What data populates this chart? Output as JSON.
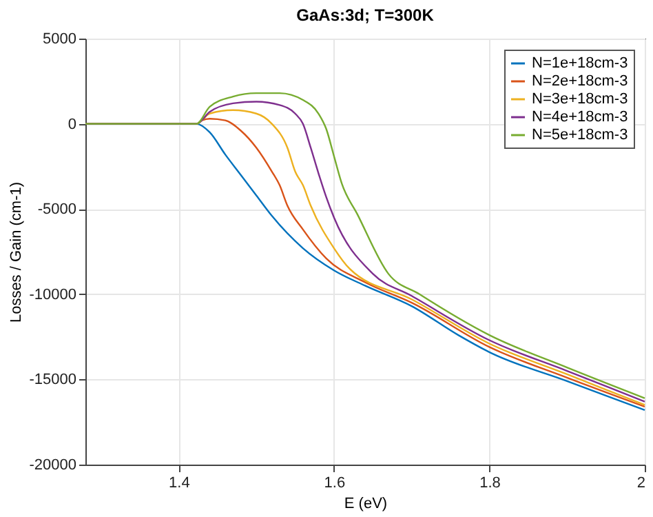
{
  "chart_data": {
    "type": "line",
    "title": "GaAs:3d; T=300K",
    "xlabel": "E (eV)",
    "ylabel": "Losses / Gain (cm-1)",
    "xlim": [
      1.28,
      2.0
    ],
    "xticks": [
      1.4,
      1.6,
      1.8,
      2
    ],
    "ylim": [
      -20000,
      5000
    ],
    "yticks": [
      -20000,
      -15000,
      -10000,
      -5000,
      0,
      5000
    ],
    "grid": true,
    "legend": "top right",
    "line_style": "solid",
    "marker": "none",
    "series": [
      {
        "name": "N=1e+18cm-3",
        "color": "#0072bd",
        "x": [
          1.28,
          1.423,
          1.44,
          1.46,
          1.48,
          1.5,
          1.52,
          1.56,
          1.6,
          1.64,
          1.7,
          1.76,
          1.8,
          1.9,
          2.0
        ],
        "values": [
          0,
          0,
          -500,
          -1800,
          -3000,
          -4200,
          -5400,
          -7300,
          -8600,
          -9500,
          -10700,
          -12400,
          -13400,
          -15100,
          -16800
        ]
      },
      {
        "name": "N=2e+18cm-3",
        "color": "#d95319",
        "x": [
          1.28,
          1.423,
          1.43,
          1.44,
          1.46,
          1.48,
          1.5,
          1.52,
          1.53,
          1.54,
          1.56,
          1.59,
          1.64,
          1.7,
          1.8,
          1.9,
          2.0
        ],
        "values": [
          0,
          0,
          200,
          300,
          200,
          -400,
          -1400,
          -2800,
          -3600,
          -4800,
          -6200,
          -7900,
          -9300,
          -10500,
          -13100,
          -14900,
          -16600
        ]
      },
      {
        "name": "N=3e+18cm-3",
        "color": "#edb120",
        "x": [
          1.28,
          1.423,
          1.44,
          1.47,
          1.5,
          1.52,
          1.54,
          1.55,
          1.56,
          1.57,
          1.6,
          1.62,
          1.7,
          1.8,
          1.9,
          2.0
        ],
        "values": [
          0,
          0,
          600,
          800,
          600,
          0,
          -1400,
          -2800,
          -3600,
          -4800,
          -7300,
          -8500,
          -10300,
          -12900,
          -14700,
          -16500
        ]
      },
      {
        "name": "N=4e+18cm-3",
        "color": "#7e2f8e",
        "x": [
          1.28,
          1.423,
          1.44,
          1.47,
          1.5,
          1.53,
          1.55,
          1.56,
          1.57,
          1.58,
          1.59,
          1.6,
          1.65,
          1.7,
          1.8,
          1.9,
          2.0
        ],
        "values": [
          0,
          0,
          700,
          1200,
          1300,
          1100,
          600,
          0,
          -1400,
          -2900,
          -4300,
          -5500,
          -8800,
          -10100,
          -12700,
          -14500,
          -16300
        ]
      },
      {
        "name": "N=5e+18cm-3",
        "color": "#77ac30",
        "x": [
          1.28,
          1.423,
          1.44,
          1.47,
          1.5,
          1.53,
          1.56,
          1.58,
          1.59,
          1.6,
          1.61,
          1.63,
          1.67,
          1.71,
          1.8,
          1.9,
          2.0
        ],
        "values": [
          0,
          0,
          1000,
          1600,
          1800,
          1800,
          1400,
          600,
          -300,
          -1900,
          -3500,
          -5300,
          -8800,
          -10000,
          -12400,
          -14300,
          -16100
        ]
      }
    ]
  }
}
